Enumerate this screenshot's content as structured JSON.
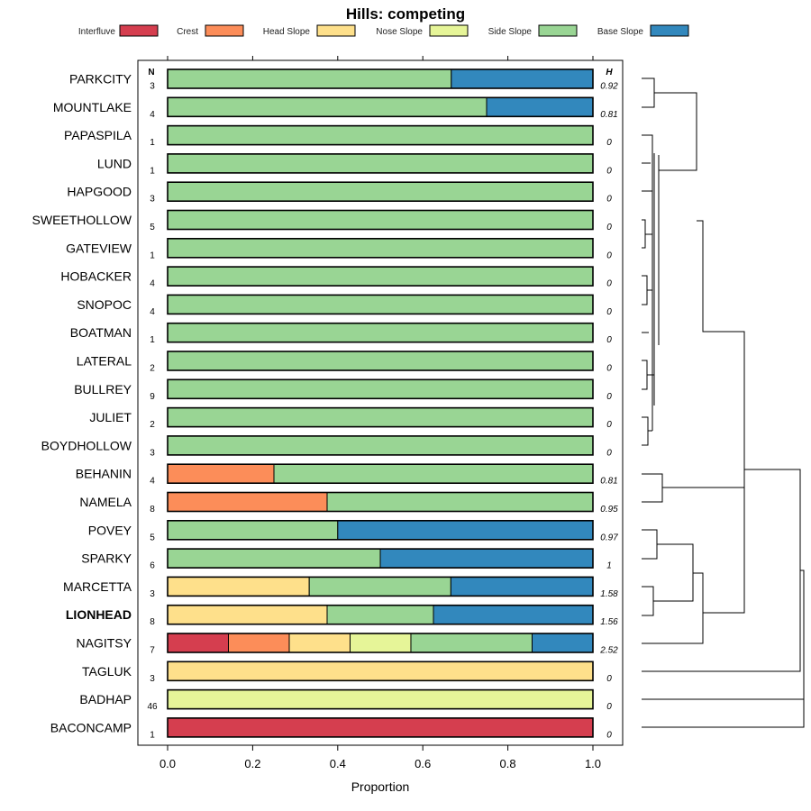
{
  "chart_data": {
    "type": "bar",
    "subtype": "stacked-horizontal-proportion",
    "title": "Hills: competing",
    "xlabel": "Proportion",
    "xlim": [
      0,
      1
    ],
    "x_ticks": [
      "0.0",
      "0.2",
      "0.4",
      "0.6",
      "0.8",
      "1.0"
    ],
    "n_header": "N",
    "h_header": "H",
    "legend": [
      {
        "name": "Interfluve",
        "color": "#D53E4F"
      },
      {
        "name": "Crest",
        "color": "#FC8D59"
      },
      {
        "name": "Head Slope",
        "color": "#FEE08B"
      },
      {
        "name": "Nose Slope",
        "color": "#E6F598"
      },
      {
        "name": "Side Slope",
        "color": "#99D594"
      },
      {
        "name": "Base Slope",
        "color": "#3288BD"
      }
    ],
    "rows": [
      {
        "name": "PARKCITY",
        "n": "3",
        "h": "0.92",
        "bold": false,
        "values": [
          0,
          0,
          0,
          0,
          0.667,
          0.333
        ]
      },
      {
        "name": "MOUNTLAKE",
        "n": "4",
        "h": "0.81",
        "bold": false,
        "values": [
          0,
          0,
          0,
          0,
          0.75,
          0.25
        ]
      },
      {
        "name": "PAPASPILA",
        "n": "1",
        "h": "0",
        "bold": false,
        "values": [
          0,
          0,
          0,
          0,
          1,
          0
        ]
      },
      {
        "name": "LUND",
        "n": "1",
        "h": "0",
        "bold": false,
        "values": [
          0,
          0,
          0,
          0,
          1,
          0
        ]
      },
      {
        "name": "HAPGOOD",
        "n": "3",
        "h": "0",
        "bold": false,
        "values": [
          0,
          0,
          0,
          0,
          1,
          0
        ]
      },
      {
        "name": "SWEETHOLLOW",
        "n": "5",
        "h": "0",
        "bold": false,
        "values": [
          0,
          0,
          0,
          0,
          1,
          0
        ]
      },
      {
        "name": "GATEVIEW",
        "n": "1",
        "h": "0",
        "bold": false,
        "values": [
          0,
          0,
          0,
          0,
          1,
          0
        ]
      },
      {
        "name": "HOBACKER",
        "n": "4",
        "h": "0",
        "bold": false,
        "values": [
          0,
          0,
          0,
          0,
          1,
          0
        ]
      },
      {
        "name": "SNOPOC",
        "n": "4",
        "h": "0",
        "bold": false,
        "values": [
          0,
          0,
          0,
          0,
          1,
          0
        ]
      },
      {
        "name": "BOATMAN",
        "n": "1",
        "h": "0",
        "bold": false,
        "values": [
          0,
          0,
          0,
          0,
          1,
          0
        ]
      },
      {
        "name": "LATERAL",
        "n": "2",
        "h": "0",
        "bold": false,
        "values": [
          0,
          0,
          0,
          0,
          1,
          0
        ]
      },
      {
        "name": "BULLREY",
        "n": "9",
        "h": "0",
        "bold": false,
        "values": [
          0,
          0,
          0,
          0,
          1,
          0
        ]
      },
      {
        "name": "JULIET",
        "n": "2",
        "h": "0",
        "bold": false,
        "values": [
          0,
          0,
          0,
          0,
          1,
          0
        ]
      },
      {
        "name": "BOYDHOLLOW",
        "n": "3",
        "h": "0",
        "bold": false,
        "values": [
          0,
          0,
          0,
          0,
          1,
          0
        ]
      },
      {
        "name": "BEHANIN",
        "n": "4",
        "h": "0.81",
        "bold": false,
        "values": [
          0,
          0.25,
          0,
          0,
          0.75,
          0
        ]
      },
      {
        "name": "NAMELA",
        "n": "8",
        "h": "0.95",
        "bold": false,
        "values": [
          0,
          0.375,
          0,
          0,
          0.625,
          0
        ]
      },
      {
        "name": "POVEY",
        "n": "5",
        "h": "0.97",
        "bold": false,
        "values": [
          0,
          0,
          0,
          0,
          0.4,
          0.6
        ]
      },
      {
        "name": "SPARKY",
        "n": "6",
        "h": "1",
        "bold": false,
        "values": [
          0,
          0,
          0,
          0,
          0.5,
          0.5
        ]
      },
      {
        "name": "MARCETTA",
        "n": "3",
        "h": "1.58",
        "bold": false,
        "values": [
          0,
          0,
          0.333,
          0,
          0.333,
          0.334
        ]
      },
      {
        "name": "LIONHEAD",
        "n": "8",
        "h": "1.56",
        "bold": true,
        "values": [
          0,
          0,
          0.375,
          0,
          0.25,
          0.375
        ]
      },
      {
        "name": "NAGITSY",
        "n": "7",
        "h": "2.52",
        "bold": false,
        "values": [
          0.143,
          0.143,
          0.143,
          0.143,
          0.285,
          0.143
        ]
      },
      {
        "name": "TAGLUK",
        "n": "3",
        "h": "0",
        "bold": false,
        "values": [
          0,
          0,
          1,
          0,
          0,
          0
        ]
      },
      {
        "name": "BADHAP",
        "n": "46",
        "h": "0",
        "bold": false,
        "values": [
          0,
          0,
          0,
          1,
          0,
          0
        ]
      },
      {
        "name": "BACONCAMP",
        "n": "1",
        "h": "0",
        "bold": false,
        "values": [
          1,
          0,
          0,
          0,
          0,
          0
        ]
      }
    ]
  }
}
